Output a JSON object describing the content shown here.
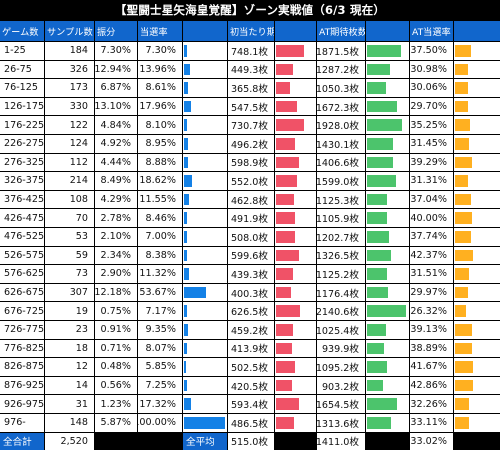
{
  "title": "【聖闘士星矢海皇覚醒】ゾーン実戦値（6/3 現在）",
  "headers": [
    "ゲーム数",
    "サンプル数",
    "振分",
    "当選率",
    "",
    "初当たり期待枚数",
    "",
    "AT期待枚数",
    "",
    "AT当選率",
    ""
  ],
  "rows": [
    {
      "game": "1-25",
      "samples": "184",
      "dist": "7.30%",
      "win": "7.30%",
      "win_v": 7.3,
      "first": "748.1枚",
      "first_v": 748.1,
      "at": "1871.5枚",
      "at_v": 1871.5,
      "atrate": "37.50%",
      "atrate_v": 37.5
    },
    {
      "game": "26-75",
      "samples": "326",
      "dist": "12.94%",
      "win": "13.96%",
      "win_v": 13.96,
      "first": "449.3枚",
      "first_v": 449.3,
      "at": "1287.2枚",
      "at_v": 1287.2,
      "atrate": "30.98%",
      "atrate_v": 30.98
    },
    {
      "game": "76-125",
      "samples": "173",
      "dist": "6.87%",
      "win": "8.61%",
      "win_v": 8.61,
      "first": "365.8枚",
      "first_v": 365.8,
      "at": "1050.3枚",
      "at_v": 1050.3,
      "atrate": "30.06%",
      "atrate_v": 30.06
    },
    {
      "game": "126-175",
      "samples": "330",
      "dist": "13.10%",
      "win": "17.96%",
      "win_v": 17.96,
      "first": "547.5枚",
      "first_v": 547.5,
      "at": "1672.3枚",
      "at_v": 1672.3,
      "atrate": "29.70%",
      "atrate_v": 29.7
    },
    {
      "game": "176-225",
      "samples": "122",
      "dist": "4.84%",
      "win": "8.10%",
      "win_v": 8.1,
      "first": "730.7枚",
      "first_v": 730.7,
      "at": "1928.0枚",
      "at_v": 1928.0,
      "atrate": "35.25%",
      "atrate_v": 35.25
    },
    {
      "game": "226-275",
      "samples": "124",
      "dist": "4.92%",
      "win": "8.95%",
      "win_v": 8.95,
      "first": "496.2枚",
      "first_v": 496.2,
      "at": "1430.1枚",
      "at_v": 1430.1,
      "atrate": "31.45%",
      "atrate_v": 31.45
    },
    {
      "game": "276-325",
      "samples": "112",
      "dist": "4.44%",
      "win": "8.88%",
      "win_v": 8.88,
      "first": "598.9枚",
      "first_v": 598.9,
      "at": "1406.6枚",
      "at_v": 1406.6,
      "atrate": "39.29%",
      "atrate_v": 39.29
    },
    {
      "game": "326-375",
      "samples": "214",
      "dist": "8.49%",
      "win": "18.62%",
      "win_v": 18.62,
      "first": "552.0枚",
      "first_v": 552.0,
      "at": "1599.0枚",
      "at_v": 1599.0,
      "atrate": "31.31%",
      "atrate_v": 31.31
    },
    {
      "game": "376-425",
      "samples": "108",
      "dist": "4.29%",
      "win": "11.55%",
      "win_v": 11.55,
      "first": "462.8枚",
      "first_v": 462.8,
      "at": "1125.3枚",
      "at_v": 1125.3,
      "atrate": "37.04%",
      "atrate_v": 37.04
    },
    {
      "game": "426-475",
      "samples": "70",
      "dist": "2.78%",
      "win": "8.46%",
      "win_v": 8.46,
      "first": "491.9枚",
      "first_v": 491.9,
      "at": "1105.9枚",
      "at_v": 1105.9,
      "atrate": "40.00%",
      "atrate_v": 40.0
    },
    {
      "game": "476-525",
      "samples": "53",
      "dist": "2.10%",
      "win": "7.00%",
      "win_v": 7.0,
      "first": "508.0枚",
      "first_v": 508.0,
      "at": "1202.7枚",
      "at_v": 1202.7,
      "atrate": "37.74%",
      "atrate_v": 37.74
    },
    {
      "game": "526-575",
      "samples": "59",
      "dist": "2.34%",
      "win": "8.38%",
      "win_v": 8.38,
      "first": "599.6枚",
      "first_v": 599.6,
      "at": "1326.5枚",
      "at_v": 1326.5,
      "atrate": "42.37%",
      "atrate_v": 42.37
    },
    {
      "game": "576-625",
      "samples": "73",
      "dist": "2.90%",
      "win": "11.32%",
      "win_v": 11.32,
      "first": "439.3枚",
      "first_v": 439.3,
      "at": "1125.2枚",
      "at_v": 1125.2,
      "atrate": "31.51%",
      "atrate_v": 31.51
    },
    {
      "game": "626-675",
      "samples": "307",
      "dist": "12.18%",
      "win": "53.67%",
      "win_v": 53.67,
      "first": "400.3枚",
      "first_v": 400.3,
      "at": "1176.4枚",
      "at_v": 1176.4,
      "atrate": "29.97%",
      "atrate_v": 29.97
    },
    {
      "game": "676-725",
      "samples": "19",
      "dist": "0.75%",
      "win": "7.17%",
      "win_v": 7.17,
      "first": "626.5枚",
      "first_v": 626.5,
      "at": "2140.6枚",
      "at_v": 2140.6,
      "atrate": "26.32%",
      "atrate_v": 26.32
    },
    {
      "game": "726-775",
      "samples": "23",
      "dist": "0.91%",
      "win": "9.35%",
      "win_v": 9.35,
      "first": "459.2枚",
      "first_v": 459.2,
      "at": "1025.4枚",
      "at_v": 1025.4,
      "atrate": "39.13%",
      "atrate_v": 39.13
    },
    {
      "game": "776-825",
      "samples": "18",
      "dist": "0.71%",
      "win": "8.07%",
      "win_v": 8.07,
      "first": "413.9枚",
      "first_v": 413.9,
      "at": "939.9枚",
      "at_v": 939.9,
      "atrate": "38.89%",
      "atrate_v": 38.89
    },
    {
      "game": "826-875",
      "samples": "12",
      "dist": "0.48%",
      "win": "5.85%",
      "win_v": 5.85,
      "first": "502.5枚",
      "first_v": 502.5,
      "at": "1095.2枚",
      "at_v": 1095.2,
      "atrate": "41.67%",
      "atrate_v": 41.67
    },
    {
      "game": "876-925",
      "samples": "14",
      "dist": "0.56%",
      "win": "7.25%",
      "win_v": 7.25,
      "first": "420.5枚",
      "first_v": 420.5,
      "at": "903.2枚",
      "at_v": 903.2,
      "atrate": "42.86%",
      "atrate_v": 42.86
    },
    {
      "game": "926-975",
      "samples": "31",
      "dist": "1.23%",
      "win": "17.32%",
      "win_v": 17.32,
      "first": "593.4枚",
      "first_v": 593.4,
      "at": "1654.5枚",
      "at_v": 1654.5,
      "atrate": "32.26%",
      "atrate_v": 32.26
    },
    {
      "game": "976-",
      "samples": "148",
      "dist": "5.87%",
      "win": "100.00%",
      "win_v": 100.0,
      "first": "486.5枚",
      "first_v": 486.5,
      "at": "1313.6枚",
      "at_v": 1313.6,
      "atrate": "33.11%",
      "atrate_v": 33.11
    }
  ],
  "footer": {
    "total_label": "全合計",
    "total_samples": "2,520",
    "avg_label": "全平均",
    "avg_first": "515.0枚",
    "avg_at": "1411.0枚",
    "avg_atrate": "33.02%"
  },
  "colors": {
    "header": "#1166cc",
    "win_bar": "#1481e6",
    "first_bar": "#f05267",
    "at_bar": "#4cc46c",
    "atrate_bar": "#ffb020"
  }
}
